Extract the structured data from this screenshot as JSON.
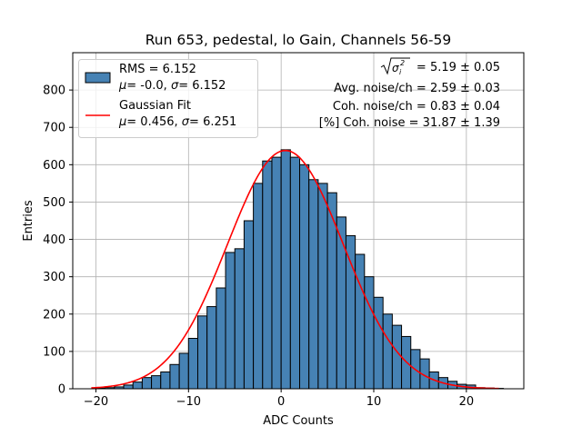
{
  "chart_data": {
    "type": "bar",
    "title": "Run 653, pedestal, lo Gain, Channels 56-59",
    "xlabel": "ADC Counts",
    "ylabel": "Entries",
    "xlim": [
      -22.5,
      26.2
    ],
    "ylim": [
      0,
      900
    ],
    "grid": true,
    "bin_width": 1,
    "bin_lefts": [
      -20,
      -19,
      -18,
      -17,
      -16,
      -15,
      -14,
      -13,
      -12,
      -11,
      -10,
      -9,
      -8,
      -7,
      -6,
      -5,
      -4,
      -3,
      -2,
      -1,
      0,
      1,
      2,
      3,
      4,
      5,
      6,
      7,
      8,
      9,
      10,
      11,
      12,
      13,
      14,
      15,
      16,
      17,
      18,
      19,
      20,
      21,
      22,
      23
    ],
    "counts": [
      2,
      3,
      5,
      10,
      18,
      30,
      35,
      45,
      65,
      95,
      135,
      195,
      220,
      270,
      365,
      375,
      450,
      550,
      610,
      620,
      640,
      620,
      600,
      560,
      550,
      525,
      460,
      410,
      360,
      300,
      245,
      200,
      170,
      140,
      105,
      80,
      45,
      30,
      20,
      12,
      10,
      3,
      2,
      1
    ],
    "bar_color": "#4682b4",
    "fit_color": "#ff0000",
    "fit": {
      "type": "gaussian",
      "mu": 0.456,
      "sigma": 6.251,
      "amplitude": 638,
      "x_range": [
        -20.5,
        23.5
      ]
    },
    "xticks": [
      -20,
      -10,
      0,
      10,
      20
    ],
    "xtick_labels": [
      "−20",
      "−10",
      "0",
      "10",
      "20"
    ],
    "yticks": [
      0,
      100,
      200,
      300,
      400,
      500,
      600,
      700,
      800
    ],
    "ytick_labels": [
      "0",
      "100",
      "200",
      "300",
      "400",
      "500",
      "600",
      "700",
      "800"
    ],
    "legend": {
      "location": "upper-left",
      "entries": [
        {
          "line1": "RMS = 6.152",
          "line2_mu": "= -0.0, ",
          "line2_sigma": "= 6.152"
        },
        {
          "line1": "Gaussian Fit",
          "line2_mu": "= 0.456, ",
          "line2_sigma": "= 6.251"
        }
      ]
    },
    "annotations": {
      "sigma_line": "= 5.19 ± 0.05",
      "avg_noise": "Avg. noise/ch = 2.59 ± 0.03",
      "coh_noise": "Coh. noise/ch = 0.83 ± 0.04",
      "pct_coh_noise": "[%] Coh. noise = 31.87 ± 1.39"
    }
  }
}
